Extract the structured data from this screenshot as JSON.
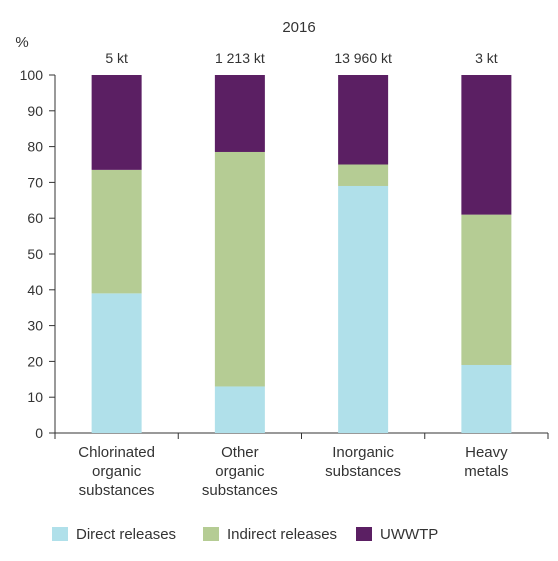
{
  "chart_data": {
    "type": "bar",
    "stacked": true,
    "title": "2016",
    "ylabel": "%",
    "xlabel": "",
    "ylim": [
      0,
      100
    ],
    "yticks": [
      0,
      10,
      20,
      30,
      40,
      50,
      60,
      70,
      80,
      90,
      100
    ],
    "categories": [
      [
        "Chlorinated",
        "organic",
        "substances"
      ],
      [
        "Other",
        "organic",
        "substances"
      ],
      [
        "Inorganic",
        "substances"
      ],
      [
        "Heavy",
        "metals"
      ]
    ],
    "totals": [
      "5 kt",
      "1 213 kt",
      "13 960 kt",
      "3 kt"
    ],
    "series": [
      {
        "name": "Direct releases",
        "color": "#b0e0ea",
        "values": [
          39,
          13,
          69,
          19
        ]
      },
      {
        "name": "Indirect releases",
        "color": "#b5cc94",
        "values": [
          34.5,
          65.5,
          6,
          42
        ]
      },
      {
        "name": "UWWTP",
        "color": "#5b1f63",
        "values": [
          26.5,
          21.5,
          25,
          39
        ]
      }
    ],
    "grid": false,
    "legend_position": "bottom"
  }
}
